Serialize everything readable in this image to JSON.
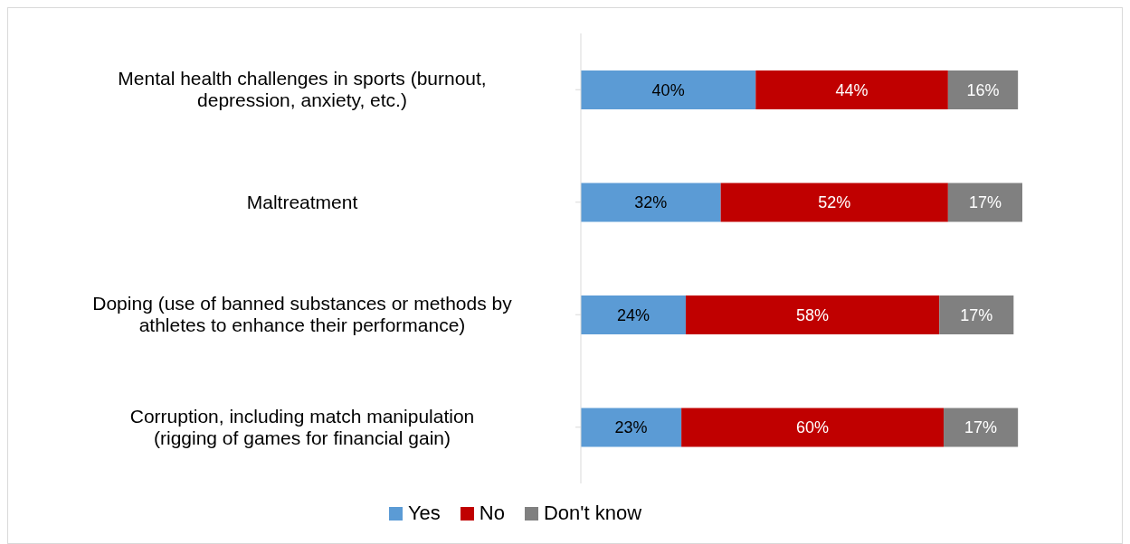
{
  "chart_data": {
    "type": "bar",
    "orientation": "horizontal",
    "stacked": true,
    "legend": "bottom",
    "categories": [
      "Mental health challenges in sports (burnout, depression, anxiety, etc.)",
      "Maltreatment",
      "Doping (use of banned substances or methods by athletes to enhance their performance)",
      "Corruption, including match manipulation (rigging of games for financial gain)"
    ],
    "series": [
      {
        "name": "Yes",
        "color": "#5b9bd5",
        "values": [
          40,
          32,
          24,
          23
        ],
        "value_labels": [
          "40%",
          "32%",
          "24%",
          "23%"
        ]
      },
      {
        "name": "No",
        "color": "#c00000",
        "values": [
          44,
          52,
          58,
          60
        ],
        "value_labels": [
          "44%",
          "52%",
          "58%",
          "60%"
        ]
      },
      {
        "name": "Don't know",
        "color": "#808080",
        "values": [
          16,
          17,
          17,
          17
        ],
        "value_labels": [
          "16%",
          "17%",
          "17%",
          "17%"
        ]
      }
    ]
  }
}
